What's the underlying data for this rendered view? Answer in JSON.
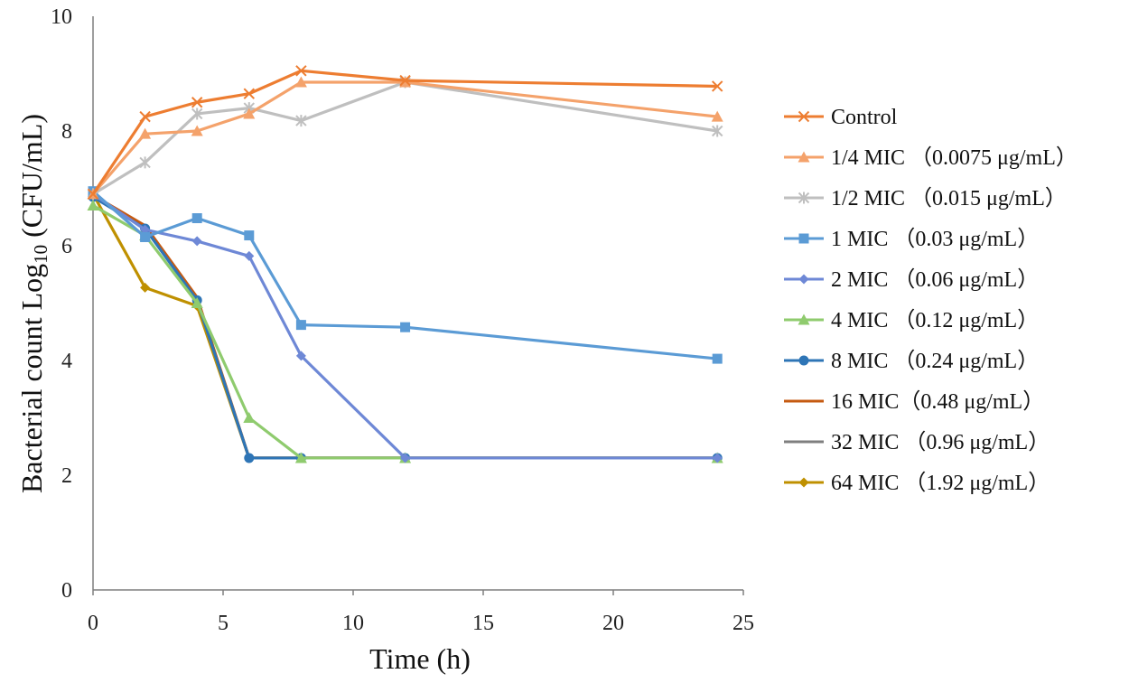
{
  "chart_data": {
    "type": "line",
    "title": "",
    "xlabel": "Time (h)",
    "ylabel_prefix": "Bacterial count Log",
    "ylabel_subscript": "10",
    "ylabel_suffix": " (CFU/mL)",
    "xlim": [
      0,
      25
    ],
    "ylim": [
      0,
      10
    ],
    "xticks": [
      0,
      5,
      10,
      15,
      20,
      25
    ],
    "yticks": [
      0,
      2,
      4,
      6,
      8,
      10
    ],
    "grid": false,
    "legend_position": "right",
    "x": [
      0,
      2,
      4,
      6,
      8,
      12,
      24
    ],
    "series": [
      {
        "name": "Control",
        "color": "#ED7D31",
        "marker": "x",
        "values": [
          6.9,
          8.25,
          8.5,
          8.65,
          9.05,
          8.88,
          8.78
        ]
      },
      {
        "name": "1/4 MIC （0.0075 μg/mL）",
        "color": "#F4A26B",
        "marker": "triangle",
        "values": [
          6.9,
          7.95,
          8.0,
          8.3,
          8.85,
          8.85,
          8.25
        ]
      },
      {
        "name": "1/2 MIC （0.015 μg/mL）",
        "color": "#BFBFBF",
        "marker": "star",
        "values": [
          6.9,
          7.45,
          8.3,
          8.4,
          8.18,
          8.85,
          8.0
        ]
      },
      {
        "name": "1 MIC （0.03 μg/mL）",
        "color": "#5B9BD5",
        "marker": "square",
        "values": [
          6.95,
          6.15,
          6.48,
          6.18,
          4.62,
          4.58,
          4.03
        ]
      },
      {
        "name": "2 MIC （0.06 μg/mL）",
        "color": "#6E88D6",
        "marker": "diamond",
        "values": [
          6.9,
          6.28,
          6.08,
          5.82,
          4.08,
          2.3,
          2.3
        ]
      },
      {
        "name": "4 MIC （0.12 μg/mL）",
        "color": "#8FCB6E",
        "marker": "triangle",
        "values": [
          6.7,
          6.18,
          5.0,
          3.0,
          2.3,
          2.3,
          2.3
        ]
      },
      {
        "name": "8 MIC （0.24 μg/mL）",
        "color": "#2E75B6",
        "marker": "circle",
        "values": [
          6.85,
          6.3,
          5.05,
          2.3,
          2.3,
          2.3,
          2.3
        ]
      },
      {
        "name": "16 MIC（0.48 μg/mL）",
        "color": "#C55A11",
        "marker": "none",
        "values": [
          6.88,
          6.35,
          5.1,
          2.3,
          2.3,
          2.3,
          2.3
        ]
      },
      {
        "name": "32 MIC （0.96 μg/mL）",
        "color": "#7F7F7F",
        "marker": "none",
        "values": [
          6.88,
          6.33,
          5.08,
          2.3,
          2.3,
          2.3,
          2.3
        ]
      },
      {
        "name": "64 MIC （1.92 μg/mL）",
        "color": "#BF9000",
        "marker": "diamond",
        "values": [
          6.9,
          5.27,
          4.95,
          2.3,
          2.3,
          2.3,
          2.3
        ]
      }
    ]
  }
}
